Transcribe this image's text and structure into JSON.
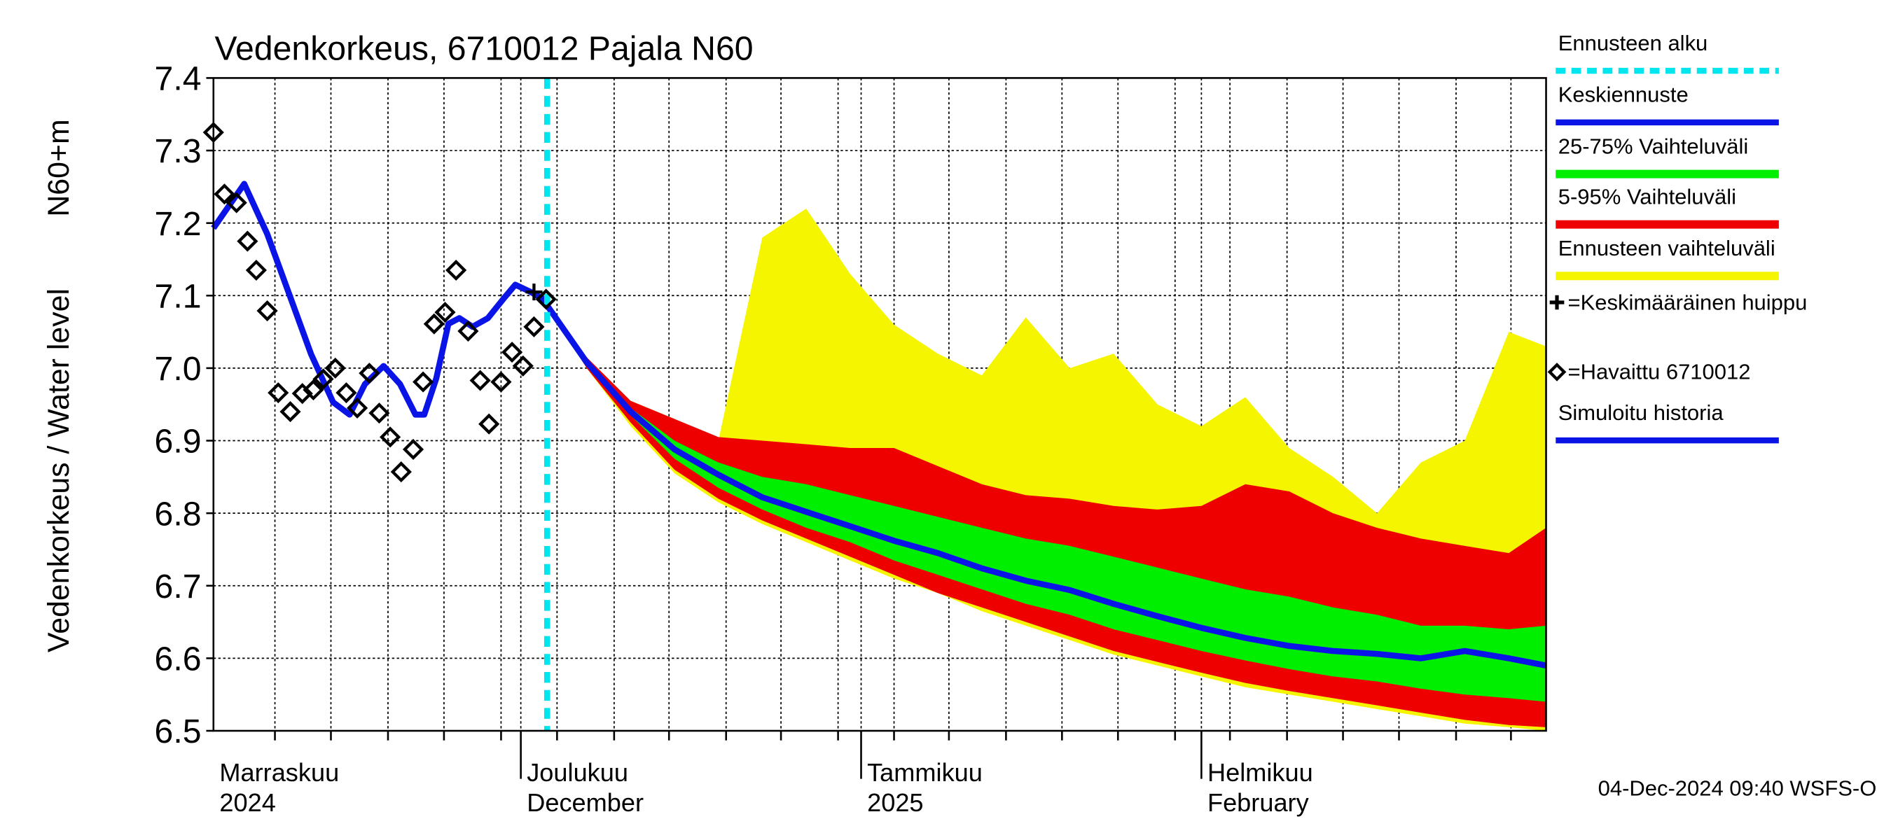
{
  "chart_data": {
    "type": "line",
    "title": "Vedenkorkeus, 6710012 Pajala N60",
    "ylabel": "Vedenkorkeus / Water level",
    "ylabel2": "N60+m",
    "footer": "04-Dec-2024 09:40 WSFS-O",
    "xlim": [
      2.0,
      123.4
    ],
    "ylim": [
      6.5,
      7.4
    ],
    "yticks": [
      6.5,
      6.6,
      6.7,
      6.8,
      6.9,
      {
        "value": 7,
        "label": "7.0"
      },
      7.1,
      7.2,
      7.3,
      7.4
    ],
    "xticks": [
      {
        "value": 0,
        "label": "Marraskuu"
      },
      {
        "value": 30,
        "label": "Joulukuu"
      },
      {
        "value": 61,
        "label": "Tammikuu"
      },
      {
        "value": 92,
        "label": "Helmikuu"
      }
    ],
    "xtick_sublabels": [
      "2024",
      "December",
      "2025",
      "February"
    ],
    "minor_xticks": [
      7.6,
      12.7,
      17.9,
      23.0,
      28.2,
      33.3,
      38.5,
      43.5,
      48.7,
      53.7,
      58.9,
      64.0,
      69.0,
      74.2,
      79.3,
      84.4,
      89.6,
      94.6,
      99.8,
      104.9,
      110.0,
      115.2,
      120.2
    ],
    "grid": true,
    "forecast_x": [
      32,
      36,
      40,
      44,
      48,
      52,
      56,
      60,
      64,
      68,
      72,
      76,
      80,
      84,
      88,
      92,
      96,
      100,
      104,
      108,
      112,
      116,
      120,
      123.4
    ],
    "series": [
      {
        "name": "Ennusteen alku",
        "kind": "vline",
        "color": "#00e5ee",
        "x": 32.4
      },
      {
        "name": "Keskiennuste",
        "kind": "line",
        "color": "#0a14e6",
        "values": [
          7.095,
          7.008,
          6.94,
          6.888,
          6.853,
          6.822,
          6.802,
          6.782,
          6.762,
          6.745,
          6.724,
          6.707,
          6.694,
          6.675,
          6.658,
          6.642,
          6.628,
          6.617,
          6.61,
          6.606,
          6.6,
          6.61,
          6.6,
          6.59
        ]
      },
      {
        "name": "25-75% Vaihteluväli",
        "kind": "band",
        "color": "#00ee00",
        "upper": [
          7.095,
          7.01,
          6.945,
          6.9,
          6.87,
          6.85,
          6.84,
          6.825,
          6.81,
          6.795,
          6.78,
          6.765,
          6.755,
          6.74,
          6.725,
          6.71,
          6.695,
          6.685,
          6.67,
          6.66,
          6.645,
          6.645,
          6.64,
          6.645
        ],
        "lower": [
          7.095,
          7.005,
          6.935,
          6.875,
          6.835,
          6.805,
          6.78,
          6.76,
          6.735,
          6.715,
          6.695,
          6.675,
          6.66,
          6.64,
          6.625,
          6.61,
          6.597,
          6.585,
          6.575,
          6.568,
          6.558,
          6.55,
          6.545,
          6.54
        ]
      },
      {
        "name": "5-95% Vaihteluväli",
        "kind": "band",
        "color": "#ee0000",
        "upper": [
          7.095,
          7.015,
          6.955,
          6.93,
          6.905,
          6.9,
          6.895,
          6.89,
          6.89,
          6.865,
          6.84,
          6.825,
          6.82,
          6.81,
          6.805,
          6.81,
          6.84,
          6.83,
          6.8,
          6.78,
          6.765,
          6.755,
          6.745,
          6.78
        ],
        "lower": [
          7.095,
          7.0,
          6.925,
          6.86,
          6.82,
          6.79,
          6.765,
          6.74,
          6.715,
          6.69,
          6.67,
          6.65,
          6.63,
          6.61,
          6.595,
          6.58,
          6.566,
          6.555,
          6.545,
          6.535,
          6.525,
          6.515,
          6.508,
          6.505
        ]
      },
      {
        "name": "Ennusteen vaihteluväli",
        "kind": "band",
        "color": "#f5f500",
        "upper": [
          7.095,
          7.01,
          6.955,
          6.93,
          6.9,
          7.18,
          7.22,
          7.13,
          7.06,
          7.02,
          6.99,
          7.07,
          7.0,
          7.02,
          6.95,
          6.92,
          6.96,
          6.89,
          6.85,
          6.8,
          6.87,
          6.9,
          7.05,
          7.03
        ],
        "lower": [
          7.095,
          7.0,
          6.92,
          6.855,
          6.815,
          6.785,
          6.76,
          6.735,
          6.71,
          6.69,
          6.665,
          6.645,
          6.625,
          6.605,
          6.59,
          6.575,
          6.56,
          6.55,
          6.54,
          6.53,
          6.52,
          6.51,
          6.505,
          6.5
        ]
      },
      {
        "name": "=Keskimääräinen huippu",
        "kind": "peak",
        "color": "#000000",
        "x": [
          31.2
        ],
        "values": [
          7.105
        ]
      },
      {
        "name": "=Havaittu 6710012",
        "kind": "points",
        "color": "#000000",
        "x": [
          2.0,
          3.0,
          4.1,
          5.1,
          5.9,
          6.9,
          7.9,
          9.0,
          10.1,
          11.1,
          12.0,
          13.1,
          14.1,
          15.1,
          16.2,
          17.1,
          18.1,
          19.1,
          20.2,
          21.1,
          22.1,
          23.1,
          24.1,
          25.2,
          26.3,
          27.1,
          28.2,
          29.2,
          30.2,
          31.2,
          32.3
        ],
        "values": [
          7.325,
          7.24,
          7.228,
          7.175,
          7.135,
          7.079,
          6.966,
          6.94,
          6.965,
          6.97,
          6.985,
          7.0,
          6.966,
          6.945,
          6.993,
          6.938,
          6.905,
          6.857,
          6.888,
          6.981,
          7.061,
          7.077,
          7.135,
          7.051,
          6.983,
          6.923,
          6.981,
          7.022,
          7.003,
          7.057,
          7.095
        ]
      },
      {
        "name": "Simuloitu historia",
        "kind": "history",
        "color": "#0a14e6",
        "x": [
          2.0,
          4.8,
          6.9,
          8.9,
          10.9,
          12.9,
          14.4,
          15.8,
          17.5,
          19.0,
          20.4,
          21.2,
          22.3,
          23.4,
          24.4,
          25.6,
          27.0,
          28.5,
          29.5,
          30.9,
          32.2
        ],
        "values": [
          7.193,
          7.254,
          7.185,
          7.102,
          7.019,
          6.953,
          6.936,
          6.978,
          7.003,
          6.978,
          6.936,
          6.936,
          6.986,
          7.061,
          7.069,
          7.057,
          7.069,
          7.097,
          7.115,
          7.105,
          7.094
        ]
      }
    ]
  }
}
